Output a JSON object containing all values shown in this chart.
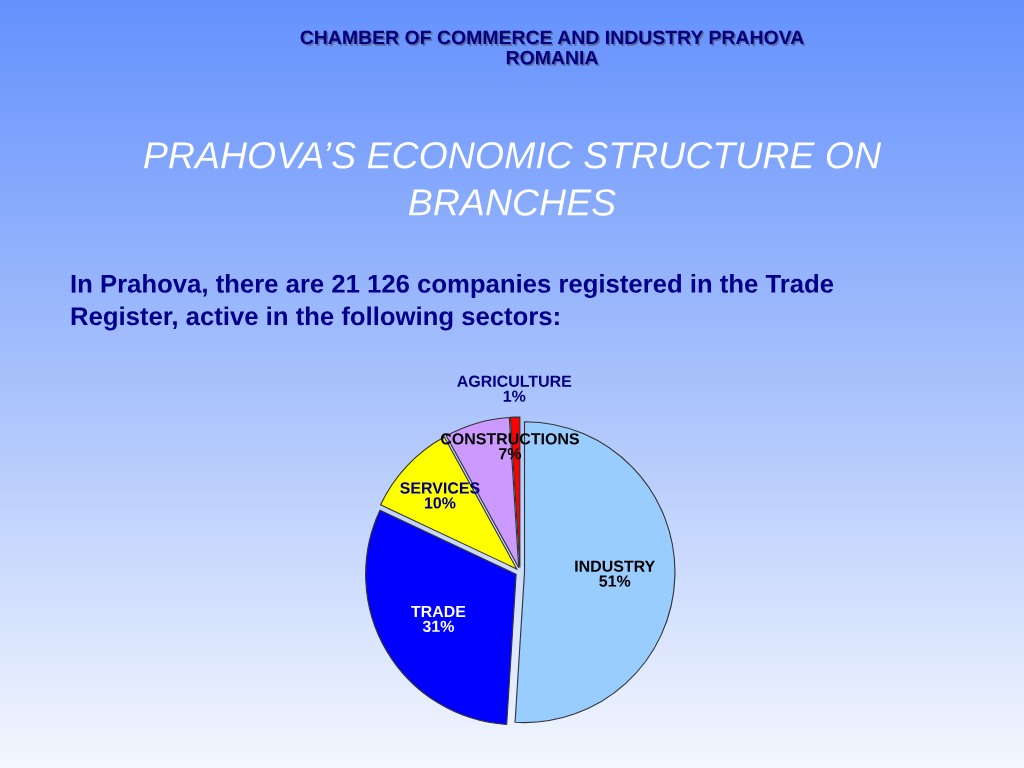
{
  "chart_data": {
    "type": "pie",
    "title": "PRAHOVA’S ECONOMIC STRUCTURE ON BRANCHES",
    "subtitle": "In Prahova, there are 21 126 companies registered in the Trade Register, active in the following sectors:",
    "annotations": [
      "CHAMBER OF COMMERCE AND INDUSTRY PRAHOVA ROMANIA"
    ],
    "categories": [
      "INDUSTRY",
      "TRADE",
      "SERVICES",
      "CONSTRUCTIONS",
      "AGRICULTURE"
    ],
    "values": [
      51,
      31,
      10,
      7,
      1
    ],
    "colors": [
      "#99ccff",
      "#0000ff",
      "#ffff00",
      "#cc99ff",
      "#ff0000"
    ],
    "value_labels": [
      "51%",
      "31%",
      "10%",
      "7%",
      "1%"
    ]
  }
}
